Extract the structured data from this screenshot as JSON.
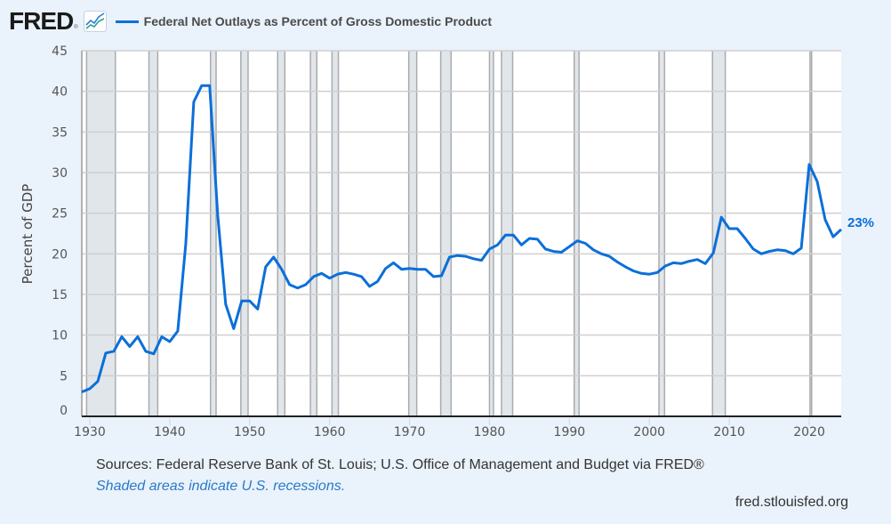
{
  "header": {
    "logo_text": "FRED",
    "logo_reg": "®",
    "legend_label": "Federal Net Outlays as Percent of Gross Domestic Product"
  },
  "footer": {
    "sources": "Sources: Federal Reserve Bank of St. Louis; U.S. Office of Management and Budget via FRED®",
    "note": "Shaded areas indicate U.S. recessions.",
    "url": "fred.stlouisfed.org"
  },
  "colors": {
    "series": "#0b6fd9",
    "recession": "#e1e6eb",
    "background": "#eaf2fb"
  },
  "chart_data": {
    "type": "line",
    "title": "Federal Net Outlays as Percent of Gross Domestic Product",
    "xlabel": "",
    "ylabel": "Percent of GDP",
    "xlim": [
      1929,
      2024
    ],
    "ylim": [
      0,
      45
    ],
    "grid": true,
    "legend": "top-left",
    "x_ticks": [
      1930,
      1940,
      1950,
      1960,
      1970,
      1980,
      1990,
      2000,
      2010,
      2020
    ],
    "y_ticks": [
      0,
      5,
      10,
      15,
      20,
      25,
      30,
      35,
      40,
      45
    ],
    "end_label": "23%",
    "recessions": [
      [
        1929.6,
        1933.2
      ],
      [
        1937.4,
        1938.5
      ],
      [
        1945.1,
        1945.8
      ],
      [
        1948.9,
        1949.8
      ],
      [
        1953.5,
        1954.4
      ],
      [
        1957.6,
        1958.4
      ],
      [
        1960.3,
        1961.1
      ],
      [
        1969.9,
        1970.9
      ],
      [
        1973.9,
        1975.2
      ],
      [
        1980.0,
        1980.5
      ],
      [
        1981.5,
        1982.9
      ],
      [
        1990.6,
        1991.2
      ],
      [
        2001.2,
        2001.9
      ],
      [
        2007.9,
        2009.5
      ],
      [
        2020.1,
        2020.3
      ]
    ],
    "series": [
      {
        "name": "Federal Net Outlays as Percent of Gross Domestic Product",
        "x": [
          1929,
          1930,
          1931,
          1932,
          1933,
          1934,
          1935,
          1936,
          1937,
          1938,
          1939,
          1940,
          1941,
          1942,
          1943,
          1944,
          1945,
          1946,
          1947,
          1948,
          1949,
          1950,
          1951,
          1952,
          1953,
          1954,
          1955,
          1956,
          1957,
          1958,
          1959,
          1960,
          1961,
          1962,
          1963,
          1964,
          1965,
          1966,
          1967,
          1968,
          1969,
          1970,
          1971,
          1972,
          1973,
          1974,
          1975,
          1976,
          1977,
          1978,
          1979,
          1980,
          1981,
          1982,
          1983,
          1984,
          1985,
          1986,
          1987,
          1988,
          1989,
          1990,
          1991,
          1992,
          1993,
          1994,
          1995,
          1996,
          1997,
          1998,
          1999,
          2000,
          2001,
          2002,
          2003,
          2004,
          2005,
          2006,
          2007,
          2008,
          2009,
          2010,
          2011,
          2012,
          2013,
          2014,
          2015,
          2016,
          2017,
          2018,
          2019,
          2020,
          2021,
          2022,
          2023,
          2024
        ],
        "values": [
          3.0,
          3.4,
          4.3,
          7.8,
          8.0,
          9.8,
          8.6,
          9.8,
          8.0,
          7.7,
          9.8,
          9.2,
          10.5,
          21.2,
          38.7,
          40.7,
          40.7,
          24.8,
          13.8,
          10.8,
          14.2,
          14.2,
          13.2,
          18.4,
          19.6,
          18.1,
          16.2,
          15.8,
          16.2,
          17.2,
          17.6,
          17.0,
          17.5,
          17.7,
          17.5,
          17.2,
          16.0,
          16.6,
          18.2,
          18.9,
          18.1,
          18.2,
          18.1,
          18.1,
          17.2,
          17.3,
          19.6,
          19.8,
          19.7,
          19.4,
          19.2,
          20.6,
          21.1,
          22.3,
          22.3,
          21.1,
          21.9,
          21.8,
          20.6,
          20.3,
          20.2,
          20.9,
          21.6,
          21.3,
          20.5,
          20.0,
          19.7,
          19.0,
          18.4,
          17.9,
          17.6,
          17.5,
          17.7,
          18.5,
          18.9,
          18.8,
          19.1,
          19.3,
          18.8,
          20.1,
          24.5,
          23.1,
          23.1,
          21.9,
          20.6,
          20.0,
          20.3,
          20.5,
          20.4,
          20.0,
          20.7,
          31.0,
          28.9,
          24.2,
          22.1,
          23.0
        ]
      }
    ]
  }
}
